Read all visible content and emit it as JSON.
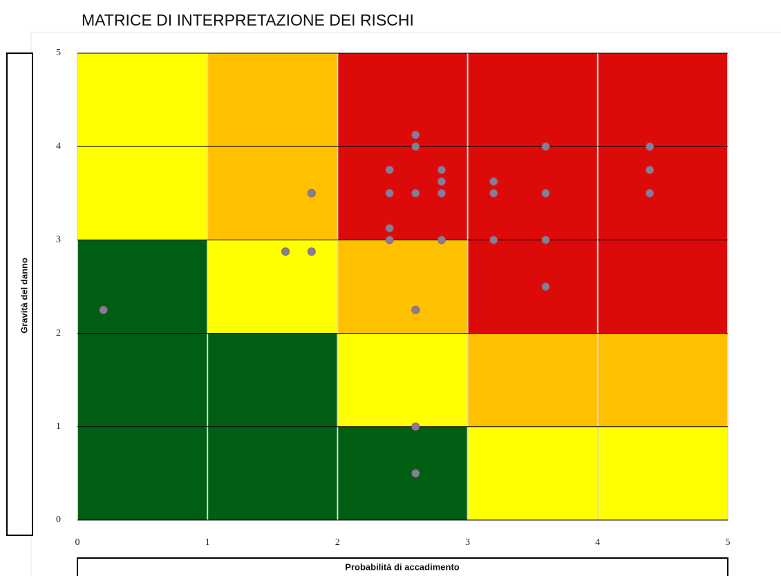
{
  "chart_data": {
    "type": "scatter",
    "title": "MATRICE DI INTERPRETAZIONE DEI RISCHI",
    "x_label": "Probabilità di accadimento",
    "y_label": "Gravità del danno",
    "xlim": [
      0,
      5
    ],
    "ylim": [
      0,
      5
    ],
    "xticks": [
      0,
      1,
      2,
      3,
      4,
      5
    ],
    "yticks": [
      0,
      1,
      2,
      3,
      4,
      5
    ],
    "zone_colors": [
      [
        "#ffff00",
        "#ffc000",
        "#dd0a0a",
        "#dd0a0a",
        "#dd0a0a"
      ],
      [
        "#ffff00",
        "#ffc000",
        "#dd0a0a",
        "#dd0a0a",
        "#dd0a0a"
      ],
      [
        "#005f12",
        "#ffff00",
        "#ffc000",
        "#dd0a0a",
        "#dd0a0a"
      ],
      [
        "#005f12",
        "#005f12",
        "#ffff00",
        "#ffc000",
        "#ffc000"
      ],
      [
        "#005f12",
        "#005f12",
        "#005f12",
        "#ffff00",
        "#ffff00"
      ]
    ],
    "series": [
      {
        "color": "#80809c",
        "x": [
          0.2,
          1.6,
          1.8,
          1.8,
          2.4,
          2.4,
          2.4,
          2.4,
          2.6,
          2.6,
          2.6,
          2.6,
          2.6,
          2.6,
          2.8,
          2.8,
          2.8,
          2.8,
          3.2,
          3.2,
          3.2,
          3.6,
          3.6,
          3.6,
          3.6,
          4.4,
          4.4,
          4.4
        ],
        "values": [
          2.25,
          2.875,
          2.875,
          3.5,
          3.75,
          3.5,
          3.125,
          3.0,
          4.125,
          4.0,
          3.5,
          2.25,
          1.0,
          0.5,
          3.75,
          3.625,
          3.5,
          3.0,
          3.625,
          3.5,
          3.0,
          4.0,
          3.5,
          3.0,
          2.5,
          4.0,
          3.75,
          3.5
        ]
      }
    ]
  }
}
